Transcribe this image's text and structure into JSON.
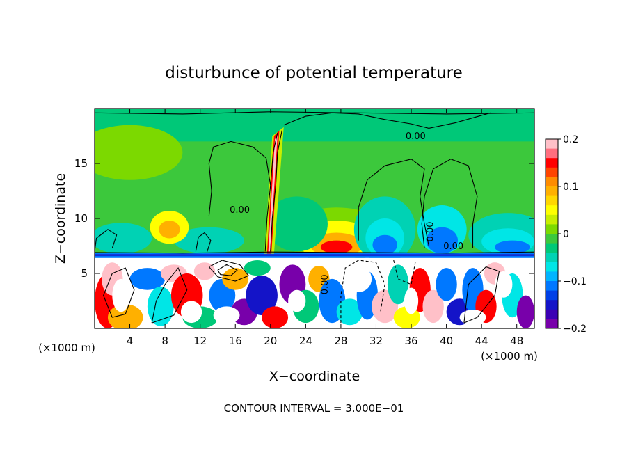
{
  "chart_data": {
    "type": "heatmap",
    "title": "disturbunce of potential temperature",
    "xlabel": "X−coordinate",
    "ylabel": "Z−coordinate",
    "x_unit_left": "(×1000 m)",
    "x_unit_right": "(×1000 m)",
    "xlim": [
      0,
      50
    ],
    "ylim": [
      0,
      20
    ],
    "x_ticks": [
      4,
      8,
      12,
      16,
      20,
      24,
      28,
      32,
      36,
      40,
      44,
      48
    ],
    "x_tick_labels": [
      "4",
      "8",
      "12",
      "16",
      "20",
      "24",
      "28",
      "32",
      "36",
      "40",
      "44",
      "48"
    ],
    "y_ticks": [
      5,
      10,
      15
    ],
    "y_tick_labels": [
      "5",
      "10",
      "15"
    ],
    "colorbar": {
      "range": [
        -0.2,
        0.2
      ],
      "ticks": [
        0.2,
        0.1,
        0,
        -0.1,
        -0.2
      ],
      "tick_labels": [
        "0.2",
        "0.1",
        "0",
        "−0.1",
        "−0.2"
      ],
      "colors": [
        "#ffc0c8",
        "#ff6f7f",
        "#ff0000",
        "#ff4500",
        "#ff8c00",
        "#ffb000",
        "#ffd700",
        "#ffff00",
        "#c8ee00",
        "#7cd900",
        "#3cc83c",
        "#00c878",
        "#00d2b4",
        "#00e6e6",
        "#00b4ff",
        "#0078ff",
        "#0040e6",
        "#1414c8",
        "#3c00b4",
        "#7800aa"
      ]
    },
    "contour_labels": [
      "0.00",
      "0.00",
      "0.00",
      "0.00",
      "0.00"
    ],
    "footer": "CONTOUR INTERVAL = 3.000E−01"
  }
}
